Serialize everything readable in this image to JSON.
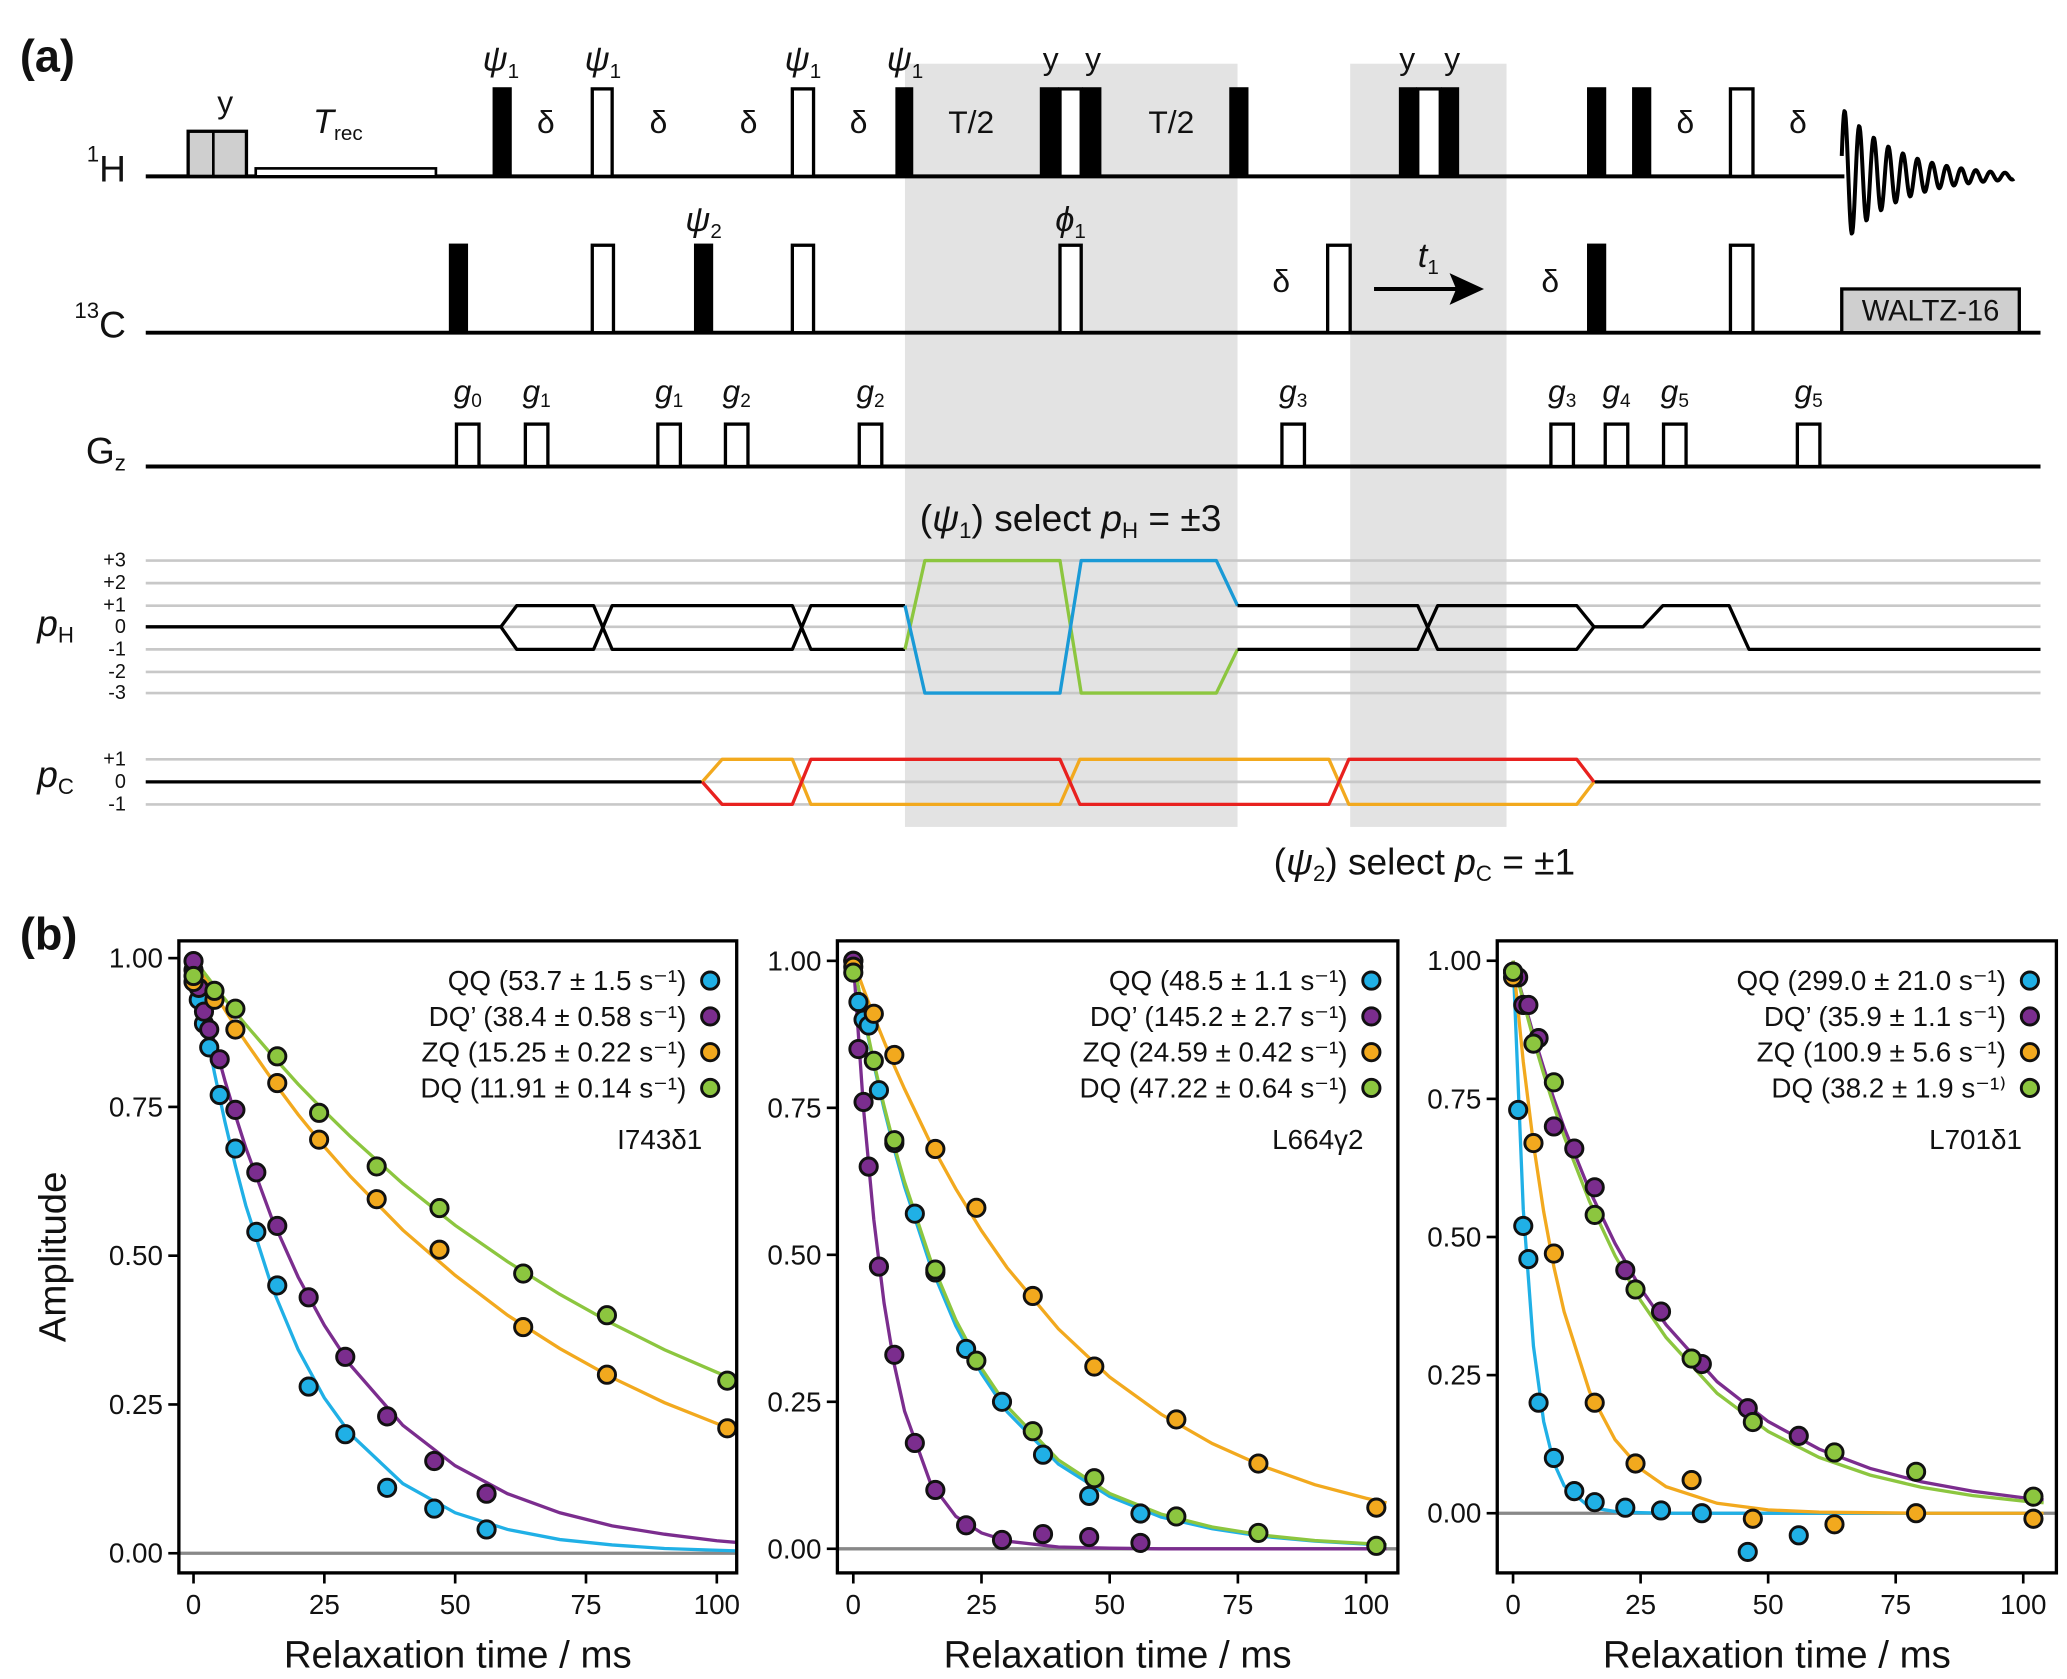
{
  "panel_a": {
    "label": "(a)",
    "channels": {
      "h": {
        "sup": "1",
        "sym": "H"
      },
      "c": {
        "sup": "13",
        "sym": "C"
      },
      "g": {
        "sym": "G",
        "sub": "z"
      }
    },
    "h_y": [
      "y",
      "y",
      "y",
      "y",
      "y"
    ],
    "trec": {
      "sym": "T",
      "sub": "rec"
    },
    "h_psi": [
      {
        "sym": "ψ",
        "sub": "1"
      },
      {
        "sym": "ψ",
        "sub": "1"
      },
      {
        "sym": "ψ",
        "sub": "1"
      },
      {
        "sym": "ψ",
        "sub": "1"
      }
    ],
    "h_delays": [
      "δ",
      "δ",
      "δ",
      "δ",
      "δ",
      "δ"
    ],
    "t_half": [
      "T/2",
      "T/2"
    ],
    "c_psi2": {
      "sym": "ψ",
      "sub": "2"
    },
    "c_phi1": {
      "sym": "ϕ",
      "sub": "1"
    },
    "c_delays": [
      "δ",
      "δ"
    ],
    "t1": {
      "sym": "t",
      "sub": "1"
    },
    "decoupling": "WALTZ-16",
    "gradients": [
      {
        "sym": "g",
        "sub": "0"
      },
      {
        "sym": "g",
        "sub": "1"
      },
      {
        "sym": "g",
        "sub": "1"
      },
      {
        "sym": "g",
        "sub": "2"
      },
      {
        "sym": "g",
        "sub": "2"
      },
      {
        "sym": "g",
        "sub": "3"
      },
      {
        "sym": "g",
        "sub": "3"
      },
      {
        "sym": "g",
        "sub": "4"
      },
      {
        "sym": "g",
        "sub": "5"
      },
      {
        "sym": "g",
        "sub": "5"
      }
    ],
    "select_h": {
      "pre": "(",
      "sym": "ψ",
      "sym_sub": "1",
      "mid": ") select ",
      "p": "p",
      "p_sub": "H",
      "post": " = ±3"
    },
    "select_c": {
      "pre": "(",
      "sym": "ψ",
      "sym_sub": "2",
      "mid": ") select ",
      "p": "p",
      "p_sub": "C",
      "post": " = ±1"
    },
    "ph_label": {
      "sym": "p",
      "sub": "H"
    },
    "pc_label": {
      "sym": "p",
      "sub": "C"
    },
    "ph_levels": [
      "+3",
      "+2",
      "+1",
      "0",
      "-1",
      "-2",
      "-3"
    ],
    "pc_levels": [
      "+1",
      "0",
      "-1"
    ]
  },
  "panel_b_label": "(b)",
  "chart_data": [
    {
      "type": "scatter",
      "annotation": "I743δ1",
      "x_label": "Relaxation time / ms",
      "y_label": "Amplitude",
      "xlim": [
        -2.8,
        103.8
      ],
      "ylim": [
        -0.033,
        1.029
      ],
      "xticks": [
        0,
        25,
        50,
        75,
        100
      ],
      "yticks": [
        {
          "value": 0,
          "label": "0.00"
        },
        {
          "value": 0.25,
          "label": "0.25"
        },
        {
          "value": 0.5,
          "label": "0.50"
        },
        {
          "value": 0.75,
          "label": "0.75"
        },
        {
          "value": 1,
          "label": "1.00"
        }
      ],
      "fit_x": [
        0,
        2,
        4,
        6,
        8,
        10,
        15,
        20,
        25,
        30,
        40,
        50,
        60,
        70,
        80,
        90,
        100,
        104
      ],
      "series": [
        {
          "name": "QQ (53.7 ± 1.5 s⁻¹)",
          "color": "#20b0e6",
          "x": [
            0,
            1,
            2,
            3,
            5,
            8,
            12,
            16,
            22,
            29,
            37,
            46,
            56
          ],
          "values": [
            0.98,
            0.93,
            0.89,
            0.85,
            0.77,
            0.68,
            0.54,
            0.45,
            0.28,
            0.2,
            0.11,
            0.075,
            0.04
          ],
          "fit": [
            1,
            0.898,
            0.807,
            0.725,
            0.651,
            0.584,
            0.447,
            0.342,
            0.261,
            0.2,
            0.117,
            0.068,
            0.04,
            0.023,
            0.014,
            0.008,
            0.005,
            0.004
          ]
        },
        {
          "name": "DQ’ (38.4 ± 0.58 s⁻¹)",
          "color": "#7b2d8e",
          "x": [
            0,
            1,
            2,
            3,
            5,
            8,
            12,
            16,
            22,
            29,
            37,
            46,
            56
          ],
          "values": [
            0.995,
            0.95,
            0.91,
            0.88,
            0.83,
            0.745,
            0.64,
            0.55,
            0.43,
            0.33,
            0.23,
            0.155,
            0.1
          ],
          "fit": [
            1,
            0.926,
            0.858,
            0.794,
            0.736,
            0.681,
            0.562,
            0.464,
            0.383,
            0.316,
            0.215,
            0.147,
            0.1,
            0.068,
            0.046,
            0.032,
            0.021,
            0.018
          ]
        },
        {
          "name": "ZQ (15.25 ± 0.22 s⁻¹)",
          "color": "#f2a91e",
          "x": [
            0,
            4,
            8,
            16,
            24,
            35,
            47,
            63,
            79,
            102
          ],
          "values": [
            0.96,
            0.93,
            0.88,
            0.79,
            0.695,
            0.595,
            0.51,
            0.38,
            0.3,
            0.21
          ],
          "fit": [
            1,
            0.97,
            0.941,
            0.913,
            0.885,
            0.859,
            0.796,
            0.737,
            0.683,
            0.633,
            0.543,
            0.467,
            0.4,
            0.344,
            0.295,
            0.253,
            0.218,
            0.205
          ]
        },
        {
          "name": "DQ (11.91 ± 0.14 s⁻¹)",
          "color": "#8cc63f",
          "x": [
            0,
            4,
            8,
            16,
            24,
            35,
            47,
            63,
            79,
            102
          ],
          "values": [
            0.97,
            0.945,
            0.915,
            0.835,
            0.74,
            0.65,
            0.58,
            0.47,
            0.4,
            0.29
          ],
          "fit": [
            1,
            0.976,
            0.953,
            0.931,
            0.909,
            0.888,
            0.837,
            0.788,
            0.743,
            0.7,
            0.621,
            0.551,
            0.49,
            0.435,
            0.386,
            0.342,
            0.304,
            0.29
          ]
        }
      ]
    },
    {
      "type": "scatter",
      "annotation": "L664γ2",
      "x_label": "Relaxation time / ms",
      "xlim": [
        -3.1,
        106.2
      ],
      "ylim": [
        -0.041,
        1.034
      ],
      "xticks": [
        0,
        25,
        50,
        75,
        100
      ],
      "yticks": [
        {
          "value": 0,
          "label": "0.00"
        },
        {
          "value": 0.25,
          "label": "0.25"
        },
        {
          "value": 0.5,
          "label": "0.50"
        },
        {
          "value": 0.75,
          "label": "0.75"
        },
        {
          "value": 1,
          "label": "1.00"
        }
      ],
      "fit_x": [
        0,
        2,
        4,
        6,
        8,
        10,
        15,
        20,
        25,
        30,
        40,
        50,
        60,
        70,
        80,
        90,
        100,
        104
      ],
      "series": [
        {
          "name": "QQ (48.5 ± 1.1 s⁻¹)",
          "color": "#20b0e6",
          "x": [
            0,
            1,
            2,
            3,
            5,
            8,
            12,
            16,
            22,
            29,
            37,
            46,
            56
          ],
          "values": [
            1.0,
            0.93,
            0.9,
            0.89,
            0.78,
            0.69,
            0.57,
            0.47,
            0.34,
            0.25,
            0.16,
            0.09,
            0.06
          ],
          "fit": [
            1,
            0.908,
            0.824,
            0.748,
            0.679,
            0.616,
            0.483,
            0.379,
            0.298,
            0.233,
            0.144,
            0.089,
            0.054,
            0.034,
            0.021,
            0.013,
            0.008,
            0.006
          ]
        },
        {
          "name": "DQ’ (145.2 ± 2.7 s⁻¹)",
          "color": "#7b2d8e",
          "x": [
            0,
            1,
            2,
            3,
            5,
            8,
            12,
            16,
            22,
            29,
            37,
            46,
            56
          ],
          "values": [
            1.0,
            0.85,
            0.76,
            0.65,
            0.48,
            0.33,
            0.18,
            0.1,
            0.04,
            0.015,
            0.025,
            0.02,
            0.01
          ],
          "fit": [
            1,
            0.748,
            0.56,
            0.418,
            0.313,
            0.234,
            0.113,
            0.055,
            0.027,
            0.013,
            0.003,
            0.001,
            0,
            0,
            0,
            0,
            0,
            0
          ]
        },
        {
          "name": "ZQ (24.59 ± 0.42 s⁻¹)",
          "color": "#f2a91e",
          "x": [
            0,
            4,
            8,
            16,
            24,
            35,
            47,
            63,
            79,
            102
          ],
          "values": [
            0.99,
            0.91,
            0.84,
            0.68,
            0.58,
            0.43,
            0.31,
            0.22,
            0.145,
            0.07
          ],
          "fit": [
            1,
            0.952,
            0.906,
            0.863,
            0.821,
            0.782,
            0.691,
            0.612,
            0.541,
            0.478,
            0.374,
            0.292,
            0.229,
            0.179,
            0.14,
            0.109,
            0.086,
            0.078
          ]
        },
        {
          "name": "DQ (47.22 ± 0.64 s⁻¹)",
          "color": "#8cc63f",
          "x": [
            0,
            4,
            8,
            16,
            24,
            35,
            47,
            63,
            79,
            102
          ],
          "values": [
            0.98,
            0.83,
            0.695,
            0.475,
            0.32,
            0.2,
            0.12,
            0.055,
            0.027,
            0.005
          ],
          "fit": [
            1,
            0.91,
            0.828,
            0.753,
            0.685,
            0.624,
            0.493,
            0.389,
            0.307,
            0.242,
            0.151,
            0.094,
            0.059,
            0.037,
            0.023,
            0.014,
            0.009,
            0.007
          ]
        }
      ]
    },
    {
      "type": "scatter",
      "annotation": "L701δ1",
      "x_label": "Relaxation time / ms",
      "xlim": [
        -3.1,
        106.5
      ],
      "ylim": [
        -0.108,
        1.036
      ],
      "xticks": [
        0,
        25,
        50,
        75,
        100
      ],
      "yticks": [
        {
          "value": 0,
          "label": "0.00"
        },
        {
          "value": 0.25,
          "label": "0.25"
        },
        {
          "value": 0.5,
          "label": "0.50"
        },
        {
          "value": 0.75,
          "label": "0.75"
        },
        {
          "value": 1,
          "label": "1.00"
        }
      ],
      "fit_x": [
        0,
        2,
        4,
        6,
        8,
        10,
        15,
        20,
        25,
        30,
        40,
        50,
        60,
        70,
        80,
        90,
        100,
        104
      ],
      "series": [
        {
          "name": "QQ (299.0 ± 21.0 s⁻¹)",
          "color": "#20b0e6",
          "x": [
            0,
            1,
            2,
            3,
            5,
            8,
            12,
            16,
            22,
            29,
            37,
            46,
            56
          ],
          "values": [
            0.98,
            0.73,
            0.52,
            0.46,
            0.2,
            0.1,
            0.04,
            0.02,
            0.01,
            0.005,
            0.0,
            -0.07,
            -0.04
          ],
          "fit": [
            1,
            0.55,
            0.302,
            0.166,
            0.091,
            0.05,
            0.011,
            0.003,
            0.001,
            0,
            0,
            0,
            0,
            0,
            0,
            0,
            0,
            0
          ]
        },
        {
          "name": "DQ’ (35.9 ± 1.1 s⁻¹)",
          "color": "#7b2d8e",
          "x": [
            0,
            1,
            2,
            3,
            5,
            8,
            12,
            16,
            22,
            29,
            37,
            46,
            56
          ],
          "values": [
            0.98,
            0.97,
            0.92,
            0.92,
            0.86,
            0.7,
            0.66,
            0.59,
            0.44,
            0.365,
            0.27,
            0.19,
            0.14
          ],
          "fit": [
            1,
            0.931,
            0.866,
            0.806,
            0.75,
            0.698,
            0.584,
            0.488,
            0.407,
            0.341,
            0.238,
            0.166,
            0.116,
            0.081,
            0.057,
            0.04,
            0.028,
            0.024
          ]
        },
        {
          "name": "ZQ (100.9 ± 5.6 s⁻¹)",
          "color": "#f2a91e",
          "x": [
            0,
            4,
            8,
            16,
            24,
            35,
            47,
            63,
            79,
            102
          ],
          "values": [
            0.97,
            0.67,
            0.47,
            0.2,
            0.09,
            0.06,
            -0.01,
            -0.02,
            0.0,
            -0.01
          ],
          "fit": [
            1,
            0.817,
            0.668,
            0.546,
            0.446,
            0.365,
            0.22,
            0.133,
            0.08,
            0.048,
            0.018,
            0.006,
            0.002,
            0.001,
            0,
            0,
            0,
            0
          ]
        },
        {
          "name": "DQ (38.2 ± 1.9 s⁻¹⁾",
          "color": "#8cc63f",
          "x": [
            0,
            4,
            8,
            16,
            24,
            35,
            47,
            63,
            79,
            102
          ],
          "values": [
            0.98,
            0.85,
            0.78,
            0.54,
            0.405,
            0.28,
            0.165,
            0.11,
            0.075,
            0.03
          ],
          "fit": [
            1,
            0.927,
            0.858,
            0.795,
            0.737,
            0.682,
            0.564,
            0.466,
            0.385,
            0.318,
            0.217,
            0.148,
            0.101,
            0.069,
            0.047,
            0.032,
            0.022,
            0.019
          ]
        }
      ]
    }
  ]
}
